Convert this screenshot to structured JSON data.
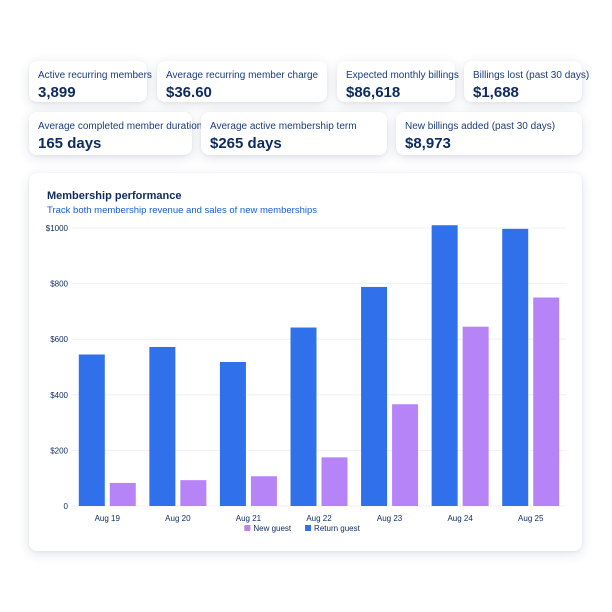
{
  "stats": [
    {
      "label": "Active recurring members",
      "value": "3,899"
    },
    {
      "label": "Average recurring member charge",
      "value": "$36.60"
    },
    {
      "label": "Expected monthly billings",
      "value": "$86,618"
    },
    {
      "label": "Billings lost (past 30 days)",
      "value": "$1,688"
    },
    {
      "label": "Average completed member duration",
      "value": "165 days"
    },
    {
      "label": "Average active membership term",
      "value": "$265 days"
    },
    {
      "label": "New billings added (past 30 days)",
      "value": "$8,973"
    }
  ],
  "chart": {
    "title": "Membership performance",
    "subtitle": "Track both membership revenue and sales of new memberships"
  },
  "chart_data": {
    "type": "bar",
    "categories": [
      "Aug 19",
      "Aug 20",
      "Aug 21",
      "Aug 22",
      "Aug 23",
      "Aug 24",
      "Aug 25"
    ],
    "series": [
      {
        "name": "Return guest",
        "color": "#3070ea",
        "values": [
          545,
          572,
          518,
          642,
          788,
          1010,
          997
        ]
      },
      {
        "name": "New guest",
        "color": "#b784f7",
        "values": [
          83,
          93,
          107,
          175,
          366,
          645,
          750
        ]
      }
    ],
    "ylim": [
      0,
      1000
    ],
    "yticks": [
      "$1000",
      "$800",
      "$600",
      "$400",
      "$200",
      "0"
    ],
    "ytick_values": [
      1000,
      800,
      600,
      400,
      200,
      0
    ],
    "legend": [
      "New guest",
      "Return guest"
    ],
    "legend_placement": "bottom-center",
    "grid": true
  }
}
